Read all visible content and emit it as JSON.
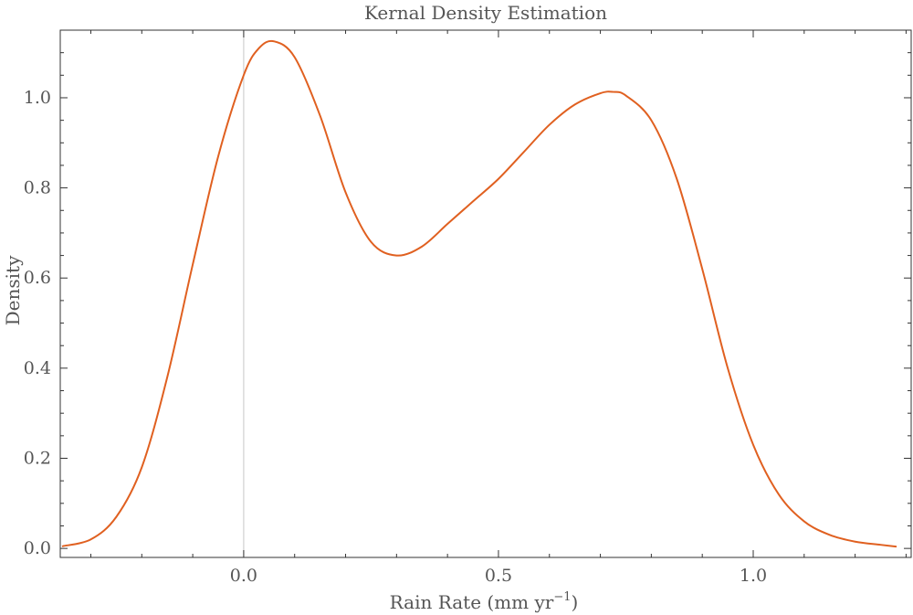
{
  "chart_data": {
    "type": "line",
    "title": "Kernal Density Estimation",
    "xlabel": "Rain Rate (mm yr",
    "xlabel_superscript": "−1",
    "xlabel_close": ")",
    "ylabel": "Density",
    "xlim": [
      -0.36,
      1.31
    ],
    "ylim": [
      -0.02,
      1.15
    ],
    "x_ticks": [
      {
        "value": 0.0,
        "label": "0.0"
      },
      {
        "value": 0.5,
        "label": "0.5"
      },
      {
        "value": 1.0,
        "label": "1.0"
      }
    ],
    "y_ticks": [
      {
        "value": 0.0,
        "label": "0.0"
      },
      {
        "value": 0.2,
        "label": "0.2"
      },
      {
        "value": 0.4,
        "label": "0.4"
      },
      {
        "value": 0.6,
        "label": "0.6"
      },
      {
        "value": 0.8,
        "label": "0.8"
      },
      {
        "value": 1.0,
        "label": "1.0"
      }
    ],
    "grid": false,
    "series": [
      {
        "color": "#e06020",
        "x": [
          -0.355,
          -0.3,
          -0.25,
          -0.2,
          -0.15,
          -0.1,
          -0.05,
          0.0,
          0.03,
          0.06,
          0.1,
          0.15,
          0.2,
          0.25,
          0.3,
          0.35,
          0.4,
          0.45,
          0.5,
          0.55,
          0.6,
          0.65,
          0.7,
          0.725,
          0.75,
          0.8,
          0.85,
          0.9,
          0.95,
          1.0,
          1.05,
          1.1,
          1.15,
          1.2,
          1.25,
          1.28
        ],
        "y": [
          0.005,
          0.02,
          0.07,
          0.18,
          0.38,
          0.63,
          0.87,
          1.05,
          1.11,
          1.125,
          1.09,
          0.96,
          0.79,
          0.68,
          0.65,
          0.67,
          0.72,
          0.77,
          0.82,
          0.88,
          0.94,
          0.985,
          1.01,
          1.013,
          1.005,
          0.95,
          0.82,
          0.62,
          0.4,
          0.23,
          0.12,
          0.06,
          0.03,
          0.015,
          0.008,
          0.004
        ]
      }
    ]
  }
}
